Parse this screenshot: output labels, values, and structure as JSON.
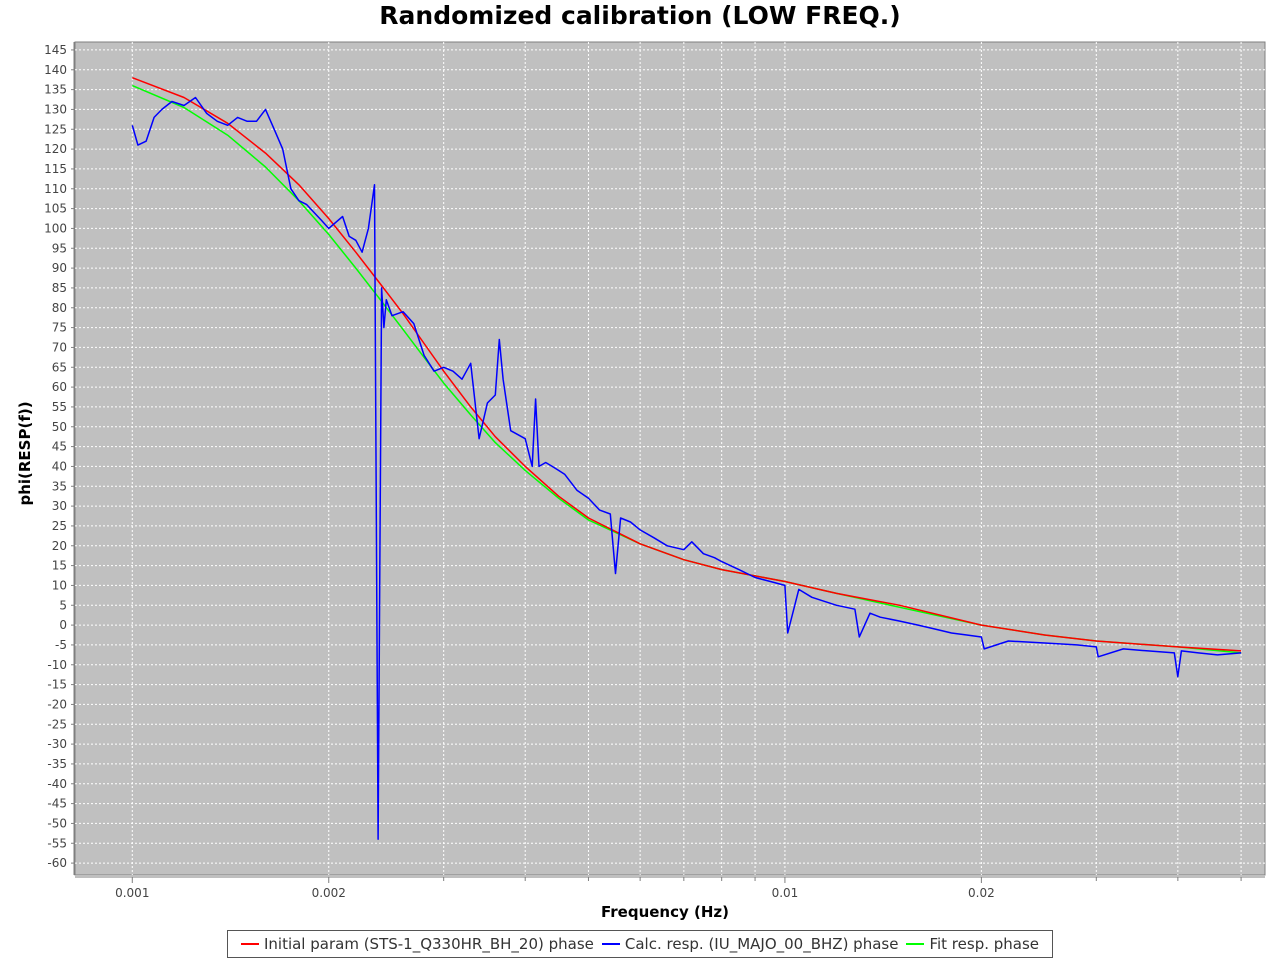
{
  "chart_data": {
    "type": "line",
    "title": "Randomized calibration (LOW FREQ.)",
    "xlabel": "Frequency (Hz)",
    "ylabel": "phi(RESP(f))",
    "xscale": "log",
    "xlim": [
      0.000817,
      0.0544
    ],
    "ylim": [
      -63,
      147
    ],
    "grid": true,
    "legend_position": "bottom",
    "xticks": [
      {
        "value": 0.001,
        "label": "0.001"
      },
      {
        "value": 0.002,
        "label": "0.002"
      },
      {
        "value": 0.01,
        "label": "0.01"
      },
      {
        "value": 0.02,
        "label": "0.02"
      }
    ],
    "xminor": [
      0.003,
      0.004,
      0.005,
      0.006,
      0.007,
      0.008,
      0.009,
      0.03,
      0.04,
      0.05
    ],
    "yticks": [
      145,
      140,
      135,
      130,
      125,
      120,
      115,
      110,
      105,
      100,
      95,
      90,
      85,
      80,
      75,
      70,
      65,
      60,
      55,
      50,
      45,
      40,
      35,
      30,
      25,
      20,
      15,
      10,
      5,
      0,
      -5,
      -10,
      -15,
      -20,
      -25,
      -30,
      -35,
      -40,
      -45,
      -50,
      -55,
      -60
    ],
    "series": [
      {
        "name": "Initial param (STS-1_Q330HR_BH_20) phase",
        "color": "#ff0000",
        "x": [
          0.001,
          0.0012,
          0.0014,
          0.0016,
          0.0018,
          0.002,
          0.0022,
          0.0024,
          0.0026,
          0.0028,
          0.003,
          0.0033,
          0.0036,
          0.004,
          0.0045,
          0.005,
          0.006,
          0.007,
          0.008,
          0.01,
          0.012,
          0.015,
          0.02,
          0.025,
          0.03,
          0.04,
          0.05
        ],
        "y": [
          138,
          133,
          126.5,
          119,
          111,
          102.5,
          94,
          86,
          78.5,
          71,
          64,
          55,
          47.5,
          40,
          32.5,
          27,
          20.5,
          16.5,
          14,
          11,
          8,
          5,
          0,
          -2.5,
          -4,
          -5.5,
          -6.5
        ]
      },
      {
        "name": "Calc. resp. (IU_MAJO_00_BHZ) phase",
        "color": "#0000ff",
        "x": [
          0.001,
          0.00102,
          0.00105,
          0.00108,
          0.00111,
          0.00115,
          0.0012,
          0.00125,
          0.0013,
          0.00135,
          0.0014,
          0.00145,
          0.0015,
          0.00155,
          0.0016,
          0.00165,
          0.0017,
          0.00175,
          0.0018,
          0.00185,
          0.0019,
          0.00195,
          0.002,
          0.0021,
          0.00215,
          0.0022,
          0.00225,
          0.0023,
          0.00235,
          0.00238,
          0.00241,
          0.00243,
          0.00245,
          0.0025,
          0.0026,
          0.0027,
          0.0028,
          0.0029,
          0.003,
          0.0031,
          0.0032,
          0.0033,
          0.0034,
          0.0035,
          0.0036,
          0.00365,
          0.0037,
          0.0038,
          0.0039,
          0.004,
          0.0041,
          0.00415,
          0.0042,
          0.0043,
          0.0044,
          0.0045,
          0.0046,
          0.0048,
          0.005,
          0.0052,
          0.0054,
          0.0055,
          0.0056,
          0.0058,
          0.006,
          0.0063,
          0.0066,
          0.007,
          0.0072,
          0.0075,
          0.0078,
          0.008,
          0.0085,
          0.009,
          0.0095,
          0.01,
          0.0101,
          0.0105,
          0.011,
          0.012,
          0.0128,
          0.013,
          0.0135,
          0.014,
          0.015,
          0.016,
          0.017,
          0.018,
          0.019,
          0.02,
          0.0202,
          0.022,
          0.025,
          0.028,
          0.03,
          0.0302,
          0.033,
          0.036,
          0.0395,
          0.04,
          0.0405,
          0.043,
          0.046,
          0.05
        ],
        "y": [
          126,
          121,
          122,
          128,
          130,
          132,
          131,
          133,
          129,
          127,
          126,
          128,
          127,
          127,
          130,
          125,
          120,
          110,
          107,
          106,
          104,
          102,
          100,
          103,
          98,
          97,
          94,
          100,
          111,
          -54,
          85,
          75,
          82,
          78,
          79,
          76,
          68,
          64,
          65,
          64,
          62,
          66,
          47,
          56,
          58,
          72,
          62,
          49,
          48,
          47,
          40,
          57,
          40,
          41,
          40,
          39,
          38,
          34,
          32,
          29,
          28,
          13,
          27,
          26,
          24,
          22,
          20,
          19,
          21,
          18,
          17,
          16,
          14,
          12,
          11,
          10,
          -2,
          9,
          7,
          5,
          4,
          -3,
          3,
          2,
          1,
          0,
          -1,
          -2,
          -2.5,
          -3,
          -6,
          -4,
          -4.5,
          -5,
          -5.5,
          -8,
          -6,
          -6.5,
          -7,
          -13,
          -6.5,
          -7,
          -7.5,
          -7
        ]
      },
      {
        "name": "Fit resp. phase",
        "color": "#00ff00",
        "x": [
          0.001,
          0.0012,
          0.0014,
          0.0016,
          0.0018,
          0.002,
          0.0022,
          0.0024,
          0.0026,
          0.0028,
          0.003,
          0.0033,
          0.0036,
          0.004,
          0.0045,
          0.005,
          0.006,
          0.007,
          0.008,
          0.01,
          0.012,
          0.015,
          0.02,
          0.025,
          0.03,
          0.04,
          0.05
        ],
        "y": [
          136,
          130.5,
          123.5,
          115.5,
          107,
          98.5,
          90,
          82,
          74.5,
          67.5,
          61,
          53,
          46,
          39,
          32,
          26.5,
          20.5,
          16.5,
          14,
          11,
          8,
          4.5,
          0,
          -2.5,
          -4,
          -5.5,
          -7
        ]
      }
    ]
  }
}
